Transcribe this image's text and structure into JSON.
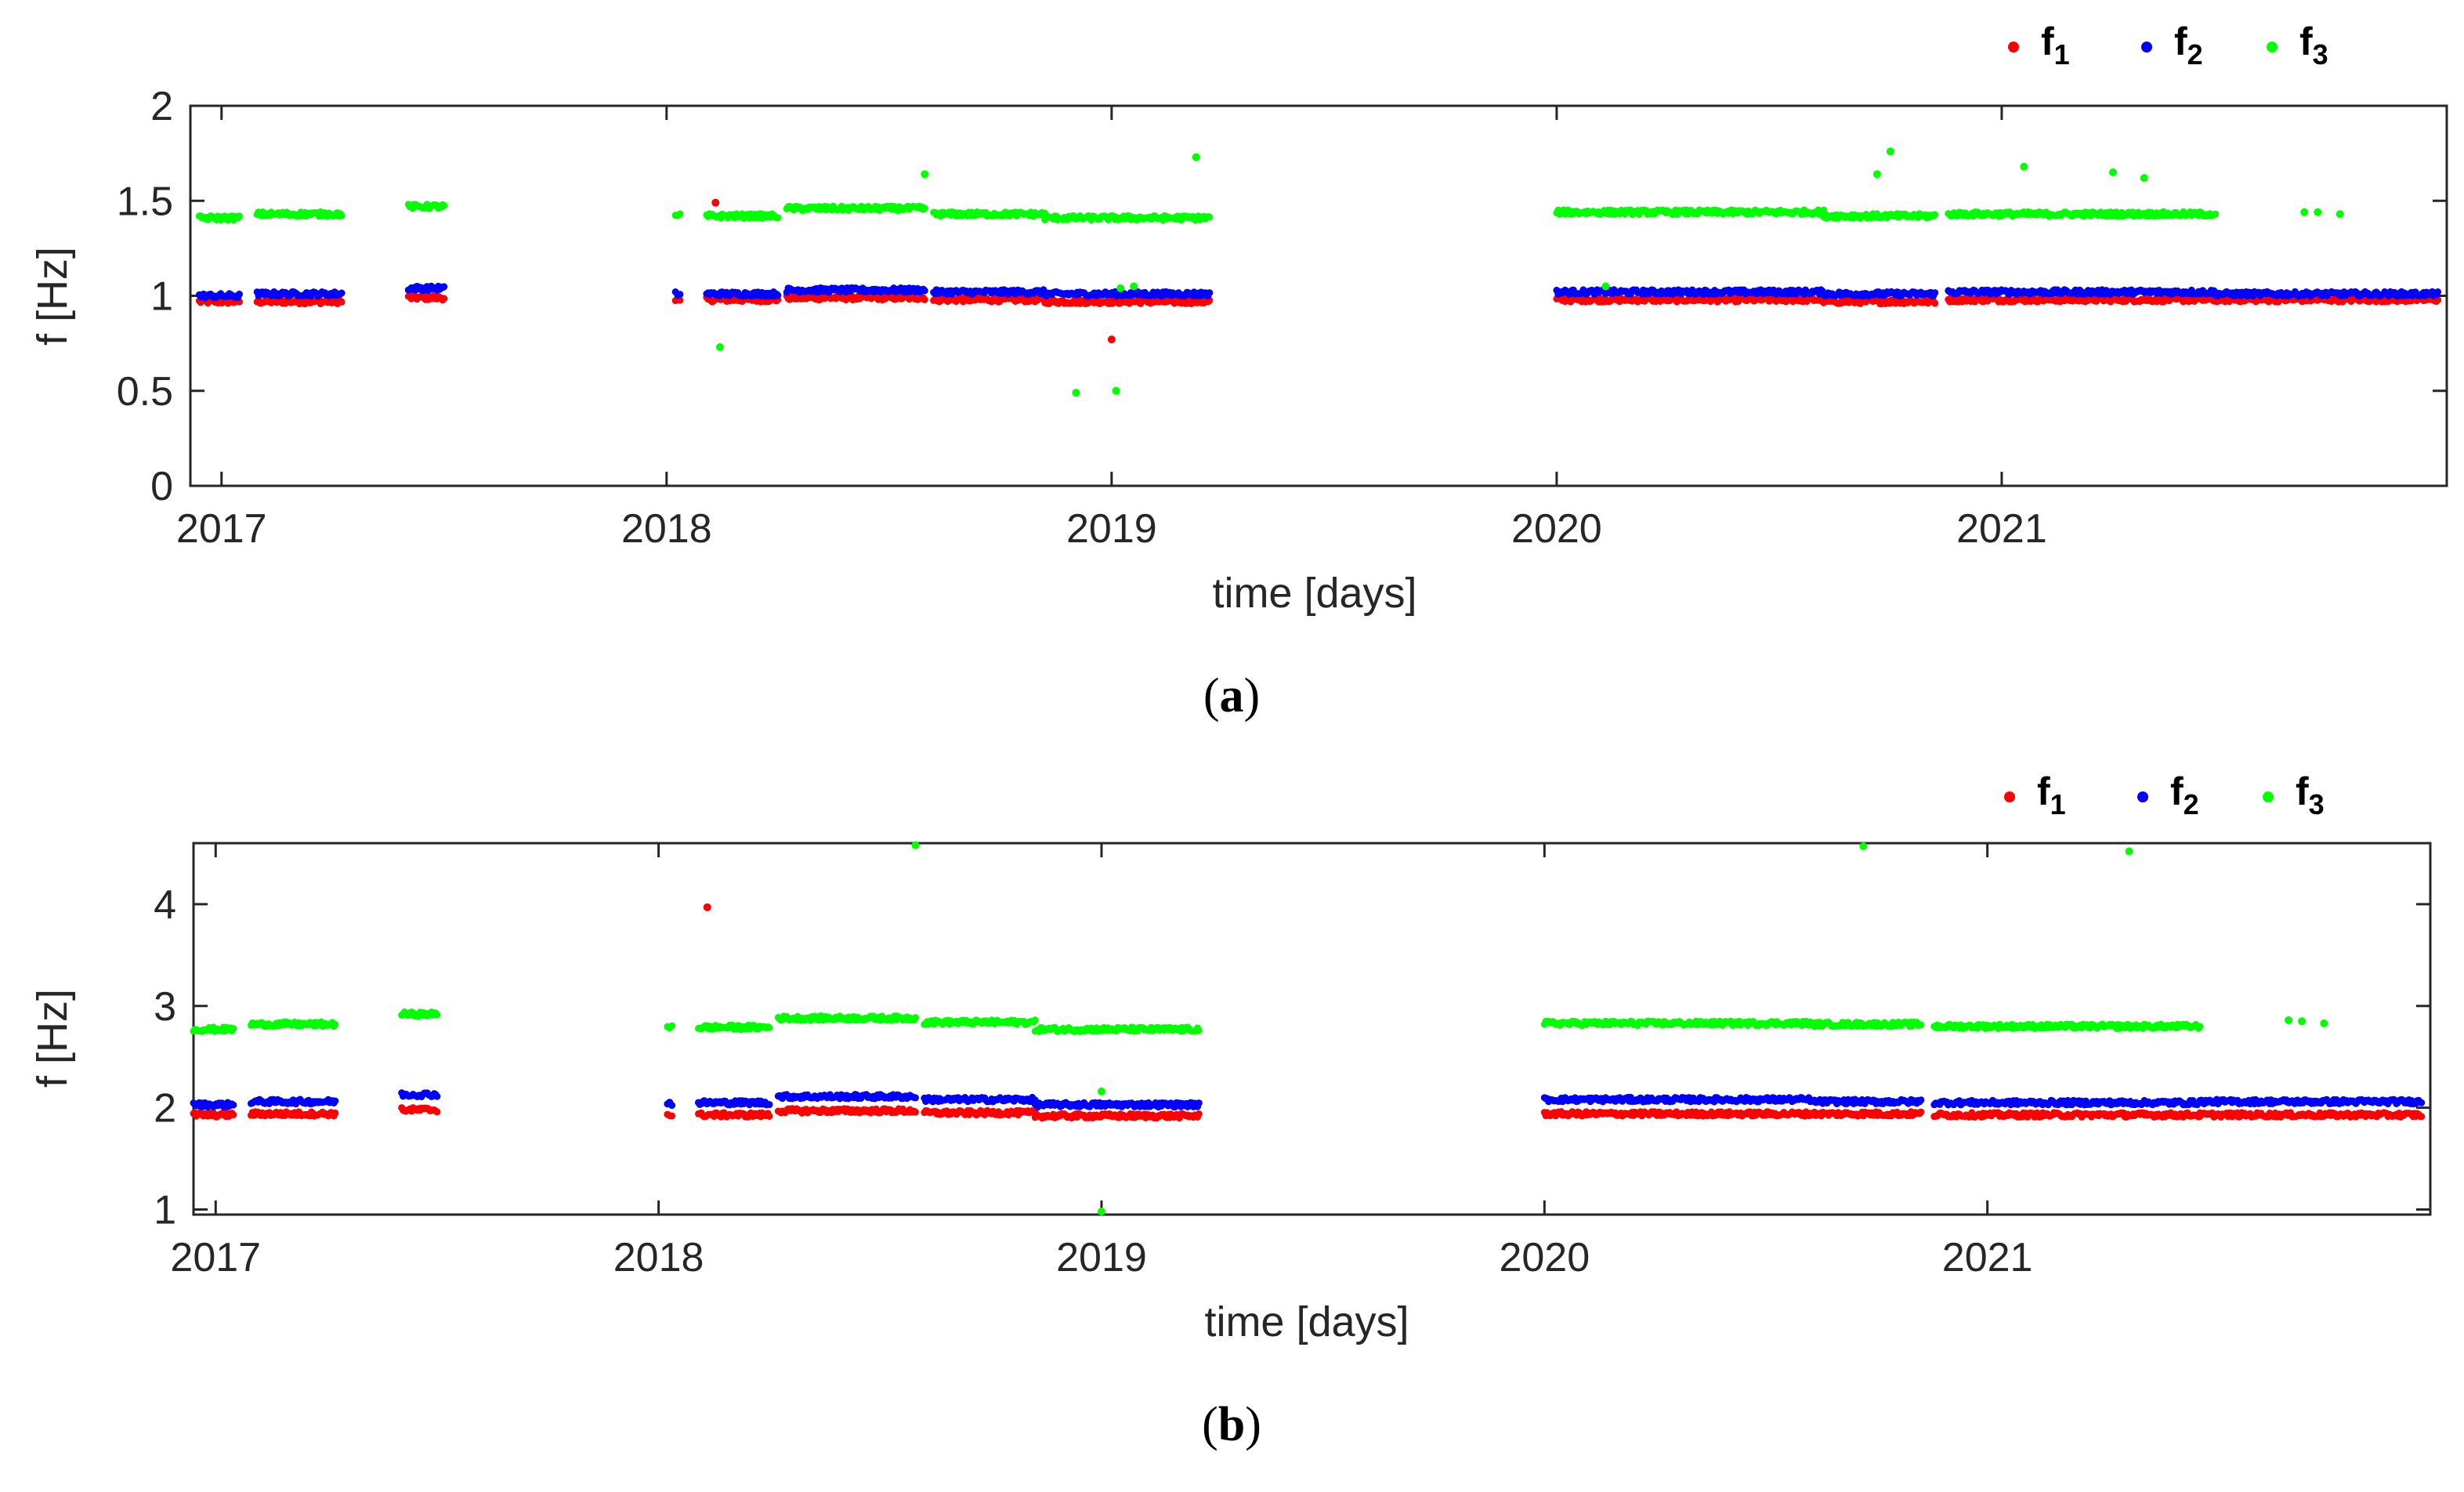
{
  "chart_data": [
    {
      "type": "scatter",
      "panel_label": "a",
      "xlabel": "time [days]",
      "ylabel": "f [Hz]",
      "xlim": [
        2016.93,
        2022.0
      ],
      "ylim": [
        0,
        2
      ],
      "yticks": [
        0,
        0.5,
        1,
        1.5,
        2
      ],
      "ytick_labels": [
        "0",
        "0.5",
        "1",
        "1.5",
        "2"
      ],
      "xticks": [
        2017,
        2018,
        2019,
        2020,
        2021
      ],
      "xtick_labels": [
        "2017",
        "2018",
        "2019",
        "2020",
        "2021"
      ],
      "legend_placement": "top-right",
      "legend": [
        {
          "label": "f",
          "sub": "1",
          "color": "#ff0000"
        },
        {
          "label": "f",
          "sub": "2",
          "color": "#0000ff"
        },
        {
          "label": "f",
          "sub": "3",
          "color": "#00ff00"
        }
      ],
      "segments": [
        {
          "start": 2016.95,
          "end": 2017.04,
          "f1": 0.97,
          "f2": 1.0,
          "f3": 1.41
        },
        {
          "start": 2017.08,
          "end": 2017.27,
          "f1": 0.97,
          "f2": 1.01,
          "f3": 1.43
        },
        {
          "start": 2017.42,
          "end": 2017.5,
          "f1": 0.99,
          "f2": 1.04,
          "f3": 1.47
        },
        {
          "start": 2018.02,
          "end": 2018.03,
          "f1": 0.97,
          "f2": 1.01,
          "f3": 1.42
        },
        {
          "start": 2018.09,
          "end": 2018.25,
          "f1": 0.98,
          "f2": 1.01,
          "f3": 1.42
        },
        {
          "start": 2018.27,
          "end": 2018.58,
          "f1": 0.99,
          "f2": 1.03,
          "f3": 1.46
        },
        {
          "start": 2018.6,
          "end": 2018.85,
          "f1": 0.98,
          "f2": 1.02,
          "f3": 1.43
        },
        {
          "start": 2018.85,
          "end": 2019.22,
          "f1": 0.97,
          "f2": 1.01,
          "f3": 1.41
        },
        {
          "start": 2020.0,
          "end": 2020.6,
          "f1": 0.98,
          "f2": 1.02,
          "f3": 1.44
        },
        {
          "start": 2020.6,
          "end": 2020.85,
          "f1": 0.97,
          "f2": 1.01,
          "f3": 1.42
        },
        {
          "start": 2020.88,
          "end": 2021.48,
          "f1": 0.98,
          "f2": 1.02,
          "f3": 1.43
        },
        {
          "start": 2021.48,
          "end": 2021.98,
          "f1": 0.98,
          "f2": 1.01,
          "f3": null
        }
      ],
      "outliers": [
        {
          "x": 2018.11,
          "y": 1.49,
          "series": "f1"
        },
        {
          "x": 2019.0,
          "y": 0.77,
          "series": "f1"
        },
        {
          "x": 2018.12,
          "y": 0.73,
          "series": "f3"
        },
        {
          "x": 2018.58,
          "y": 1.64,
          "series": "f3"
        },
        {
          "x": 2018.92,
          "y": 0.49,
          "series": "f3"
        },
        {
          "x": 2019.01,
          "y": 0.5,
          "series": "f3"
        },
        {
          "x": 2019.02,
          "y": 1.04,
          "series": "f3"
        },
        {
          "x": 2019.05,
          "y": 1.05,
          "series": "f3"
        },
        {
          "x": 2019.19,
          "y": 1.73,
          "series": "f3"
        },
        {
          "x": 2020.11,
          "y": 1.05,
          "series": "f3"
        },
        {
          "x": 2020.72,
          "y": 1.64,
          "series": "f3"
        },
        {
          "x": 2020.75,
          "y": 1.76,
          "series": "f3"
        },
        {
          "x": 2021.05,
          "y": 1.68,
          "series": "f3"
        },
        {
          "x": 2021.25,
          "y": 1.65,
          "series": "f3"
        },
        {
          "x": 2021.32,
          "y": 1.62,
          "series": "f3"
        },
        {
          "x": 2021.68,
          "y": 1.44,
          "series": "f3"
        },
        {
          "x": 2021.71,
          "y": 1.44,
          "series": "f3"
        },
        {
          "x": 2021.76,
          "y": 1.43,
          "series": "f3"
        }
      ]
    },
    {
      "type": "scatter",
      "panel_label": "b",
      "xlabel": "time [days]",
      "ylabel": "f [Hz]",
      "xlim": [
        2016.95,
        2022.0
      ],
      "ylim": [
        0.95,
        4.6
      ],
      "yticks": [
        1,
        2,
        3,
        4
      ],
      "ytick_labels": [
        "1",
        "2",
        "3",
        "4"
      ],
      "xticks": [
        2017,
        2018,
        2019,
        2020,
        2021
      ],
      "xtick_labels": [
        "2017",
        "2018",
        "2019",
        "2020",
        "2021"
      ],
      "legend_placement": "top-right",
      "legend": [
        {
          "label": "f",
          "sub": "1",
          "color": "#ff0000"
        },
        {
          "label": "f",
          "sub": "2",
          "color": "#0000ff"
        },
        {
          "label": "f",
          "sub": "3",
          "color": "#00ff00"
        }
      ],
      "segments": [
        {
          "start": 2016.95,
          "end": 2017.04,
          "f1": 1.93,
          "f2": 2.03,
          "f3": 2.77
        },
        {
          "start": 2017.08,
          "end": 2017.27,
          "f1": 1.94,
          "f2": 2.06,
          "f3": 2.82
        },
        {
          "start": 2017.42,
          "end": 2017.5,
          "f1": 1.98,
          "f2": 2.13,
          "f3": 2.92
        },
        {
          "start": 2018.02,
          "end": 2018.03,
          "f1": 1.93,
          "f2": 2.04,
          "f3": 2.8
        },
        {
          "start": 2018.09,
          "end": 2018.25,
          "f1": 1.93,
          "f2": 2.05,
          "f3": 2.79
        },
        {
          "start": 2018.27,
          "end": 2018.58,
          "f1": 1.97,
          "f2": 2.11,
          "f3": 2.88
        },
        {
          "start": 2018.6,
          "end": 2018.85,
          "f1": 1.95,
          "f2": 2.08,
          "f3": 2.84
        },
        {
          "start": 2018.85,
          "end": 2019.22,
          "f1": 1.92,
          "f2": 2.03,
          "f3": 2.77
        },
        {
          "start": 2020.0,
          "end": 2020.6,
          "f1": 1.94,
          "f2": 2.08,
          "f3": 2.83
        },
        {
          "start": 2020.6,
          "end": 2020.85,
          "f1": 1.94,
          "f2": 2.06,
          "f3": 2.82
        },
        {
          "start": 2020.88,
          "end": 2021.48,
          "f1": 1.93,
          "f2": 2.05,
          "f3": 2.8
        },
        {
          "start": 2021.48,
          "end": 2021.98,
          "f1": 1.93,
          "f2": 2.06,
          "f3": null
        }
      ],
      "outliers": [
        {
          "x": 2018.11,
          "y": 3.97,
          "series": "f1"
        },
        {
          "x": 2018.58,
          "y": 4.58,
          "series": "f3"
        },
        {
          "x": 2019.0,
          "y": 2.16,
          "series": "f3"
        },
        {
          "x": 2019.0,
          "y": 0.98,
          "series": "f3"
        },
        {
          "x": 2020.72,
          "y": 4.57,
          "series": "f3"
        },
        {
          "x": 2021.32,
          "y": 4.52,
          "series": "f3"
        },
        {
          "x": 2021.68,
          "y": 2.86,
          "series": "f3"
        },
        {
          "x": 2021.71,
          "y": 2.85,
          "series": "f3"
        },
        {
          "x": 2021.76,
          "y": 2.83,
          "series": "f3"
        }
      ]
    }
  ]
}
